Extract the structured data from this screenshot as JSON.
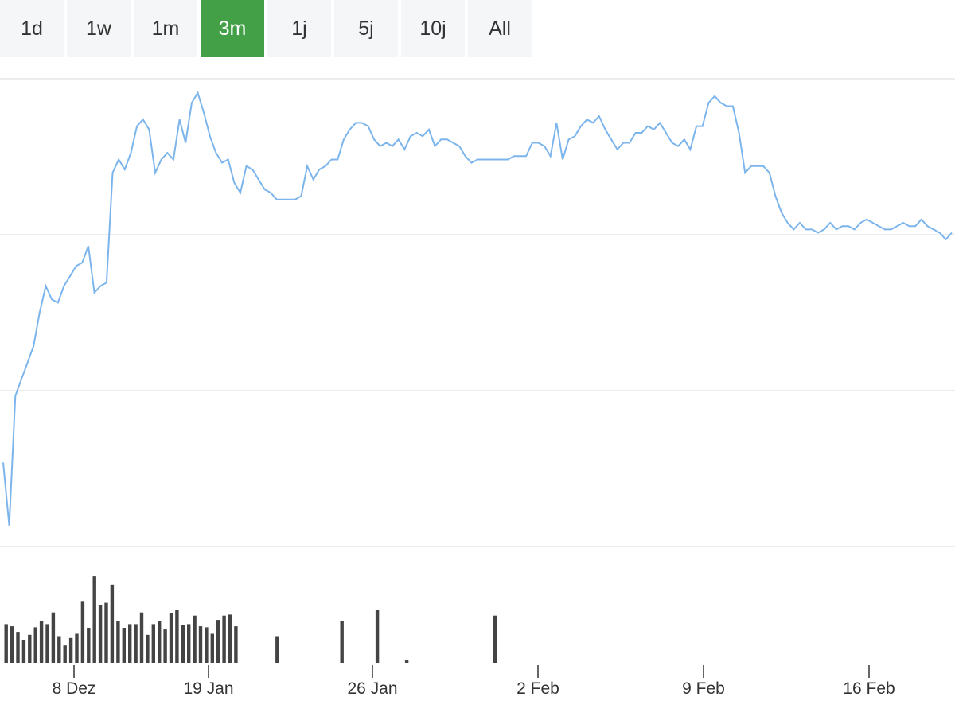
{
  "range_selector": {
    "buttons": [
      {
        "label": "1d"
      },
      {
        "label": "1w"
      },
      {
        "label": "1m"
      },
      {
        "label": "3m",
        "active": true
      },
      {
        "label": "1j"
      },
      {
        "label": "5j"
      },
      {
        "label": "10j"
      },
      {
        "label": "All"
      }
    ]
  },
  "colors": {
    "active_button": "#43a047",
    "button_bg": "#f5f6f7",
    "price_line": "#7cb5ec",
    "volume_bar": "#444444",
    "gridline": "#e6e6e6"
  },
  "chart_data": {
    "type": "line",
    "title": "",
    "xlabel": "",
    "ylabel": "",
    "grid": true,
    "y_axis_labels_shown": false,
    "x_ticks": [
      "8 Dez",
      "19 Jan",
      "26 Jan",
      "2 Feb",
      "9 Feb",
      "16 Feb"
    ],
    "series": [
      {
        "kind": "price_line",
        "values": [
          85,
          66,
          105,
          110,
          115,
          120,
          130,
          138,
          134,
          133,
          138,
          141,
          144,
          145,
          150,
          136,
          138,
          139,
          172,
          176,
          173,
          178,
          186,
          188,
          185,
          172,
          176,
          178,
          176,
          188,
          181,
          193,
          196,
          190,
          183,
          178,
          175,
          176,
          169,
          166,
          174,
          173,
          170,
          167,
          166,
          164,
          164,
          164,
          164,
          165,
          174,
          170,
          173,
          174,
          176,
          176,
          182,
          185,
          187,
          187,
          186,
          182,
          180,
          181,
          180,
          182,
          179,
          183,
          184,
          183,
          185,
          180,
          182,
          182,
          181,
          180,
          177,
          175,
          176,
          176,
          176,
          176,
          176,
          176,
          177,
          177,
          177,
          181,
          181,
          180,
          177,
          187,
          176,
          182,
          183,
          186,
          188,
          187,
          189,
          185,
          182,
          179,
          181,
          181,
          184,
          184,
          186,
          185,
          187,
          184,
          181,
          180,
          182,
          179,
          186,
          186,
          193,
          195,
          193,
          192,
          192,
          184,
          172,
          174,
          174,
          174,
          172,
          165,
          160,
          157,
          155,
          157,
          155,
          155,
          154,
          155,
          157,
          155,
          156,
          156,
          155,
          157,
          158,
          157,
          156,
          155,
          155,
          156,
          157,
          156,
          156,
          158,
          156,
          155,
          154,
          152,
          154
        ],
        "y_range": [
          60,
          200
        ]
      },
      {
        "kind": "volume_bars",
        "values": [
          37,
          35,
          29,
          22,
          27,
          34,
          40,
          37,
          48,
          25,
          17,
          24,
          28,
          58,
          33,
          82,
          55,
          57,
          74,
          40,
          33,
          37,
          37,
          48,
          27,
          37,
          40,
          32,
          47,
          50,
          36,
          37,
          45,
          35,
          34,
          28,
          41,
          45,
          46,
          35,
          0,
          0,
          0,
          0,
          0,
          0,
          25,
          0,
          0,
          0,
          0,
          0,
          0,
          0,
          0,
          0,
          0,
          40,
          0,
          0,
          0,
          0,
          0,
          50,
          0,
          0,
          0,
          0,
          3,
          0,
          0,
          0,
          0,
          0,
          0,
          0,
          0,
          0,
          0,
          0,
          0,
          0,
          0,
          45,
          0,
          0,
          0,
          0,
          0,
          0,
          0,
          0,
          0,
          0,
          0,
          0,
          0,
          0,
          0,
          0,
          0,
          0,
          0,
          0,
          0,
          0,
          0,
          0,
          0,
          0,
          0,
          0,
          0,
          0,
          0,
          0,
          0,
          0,
          0,
          0,
          0,
          0,
          0,
          0,
          0,
          0,
          0,
          0,
          0,
          0,
          0,
          0,
          0,
          0,
          0,
          0,
          0,
          0,
          0,
          0,
          0,
          0,
          0,
          0,
          0,
          0,
          0,
          0,
          0,
          0,
          0,
          0,
          0,
          0,
          0,
          0,
          0,
          0,
          0,
          0,
          0
        ],
        "y_range": [
          0,
          100
        ]
      }
    ]
  }
}
